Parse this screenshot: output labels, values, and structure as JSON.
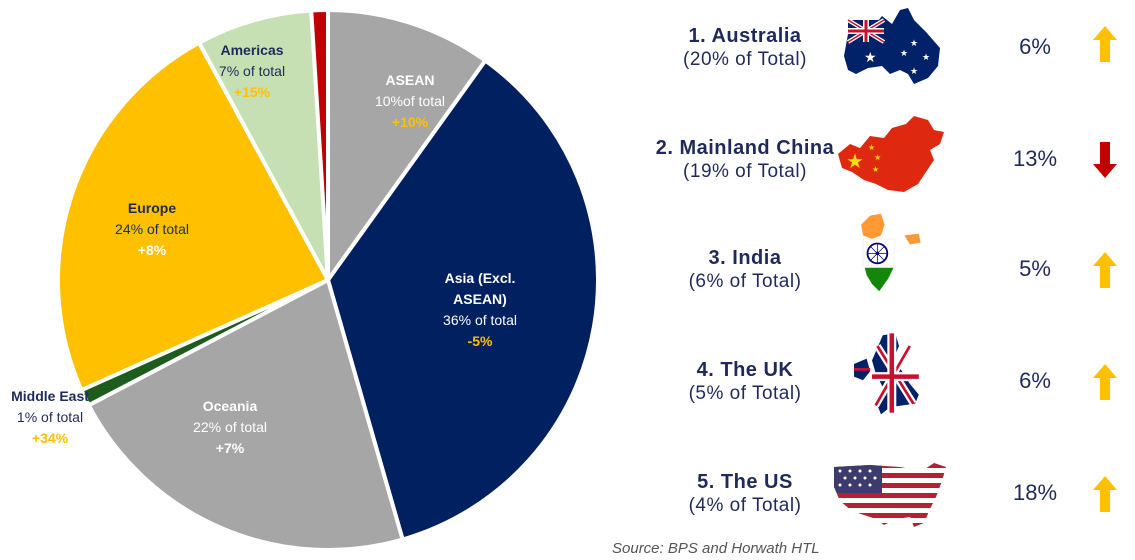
{
  "chart_data": {
    "type": "pie",
    "slices": [
      {
        "name": "ASEAN",
        "share": 10,
        "share_label": "10%of total",
        "growth_label": "+10%",
        "color": "#a6a6a6",
        "name_color": "#ffffff",
        "share_color": "#ffffff",
        "growth_color": "#ffc000"
      },
      {
        "name": "Asia (Excl. ASEAN)",
        "share": 36,
        "share_label": "36% of total",
        "growth_label": "-5%",
        "color": "#002060",
        "name_color": "#ffffff",
        "share_color": "#ffffff",
        "growth_color": "#ffc000"
      },
      {
        "name": "Oceania",
        "share": 22,
        "share_label": "22% of total",
        "growth_label": "+7%",
        "color": "#a6a6a6",
        "name_color": "#ffffff",
        "share_color": "#ffffff",
        "growth_color": "#ffffff"
      },
      {
        "name": "Middle East",
        "share": 1,
        "share_label": "1% of total",
        "growth_label": "+34%",
        "color": "#1e5c1e",
        "name_color": "#1f2a5a",
        "share_color": "#1f2a5a",
        "growth_color": "#ffc000"
      },
      {
        "name": "Europe",
        "share": 24,
        "share_label": "24% of total",
        "growth_label": "+8%",
        "color": "#ffc000",
        "name_color": "#1f2a5a",
        "share_color": "#1f2a5a",
        "growth_color": "#ffffff"
      },
      {
        "name": "Americas",
        "share": 7,
        "share_label": "7% of total",
        "growth_label": "+15%",
        "color": "#c6e0b4",
        "name_color": "#1f2a5a",
        "share_color": "#1f2a5a",
        "growth_color": "#ffc000"
      },
      {
        "name": "",
        "share": 1,
        "share_label": "",
        "growth_label": "",
        "color": "#c00000"
      }
    ]
  },
  "rankings": [
    {
      "title": "1.  Australia",
      "subtitle": "(20% of Total)",
      "value": "6%",
      "trend": "up",
      "flag": "australia-flag-map"
    },
    {
      "title": "2.  Mainland China",
      "subtitle": "(19% of Total)",
      "value": "13%",
      "trend": "down",
      "flag": "china-flag-map"
    },
    {
      "title": "3. India",
      "subtitle": "(6% of Total)",
      "value": "5%",
      "trend": "up",
      "flag": "india-flag-map"
    },
    {
      "title": "4. The UK",
      "subtitle": "(5% of Total)",
      "value": "6%",
      "trend": "up",
      "flag": "uk-flag-map"
    },
    {
      "title": "5. The US",
      "subtitle": "(4% of Total)",
      "value": "18%",
      "trend": "up",
      "flag": "us-flag-map"
    }
  ],
  "colors": {
    "up": "#ffc000",
    "down": "#c00000",
    "text": "#1f2a5a"
  },
  "source": "Source: BPS and Horwath HTL"
}
